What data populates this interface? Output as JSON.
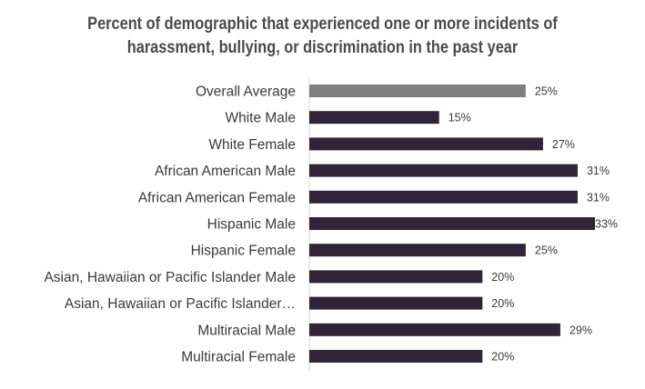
{
  "chart_data": {
    "type": "bar",
    "orientation": "horizontal",
    "title_lines": [
      "Percent of demographic that experienced one or more incidents of",
      "harassment, bullying, or discrimination in the past year"
    ],
    "categories": [
      "Overall Average",
      "White Male",
      "White Female",
      "African American Male",
      "African American Female",
      "Hispanic Male",
      "Hispanic Female",
      "Asian, Hawaiian or Pacific Islander Male",
      "Asian, Hawaiian or Pacific Islander…",
      "Multiracial Male",
      "Multiracial Female"
    ],
    "values": [
      25,
      15,
      27,
      31,
      31,
      33,
      25,
      20,
      20,
      29,
      20
    ],
    "value_labels": [
      "25%",
      "15%",
      "27%",
      "31%",
      "31%",
      "33%",
      "25%",
      "20%",
      "20%",
      "29%",
      "20%"
    ],
    "xlim": [
      0,
      33
    ],
    "grid": false,
    "colors": {
      "highlight": "#7f7f7f",
      "bar": "#2f2438",
      "axis": "#d9d9d9",
      "text": "#3a3a3a"
    }
  }
}
